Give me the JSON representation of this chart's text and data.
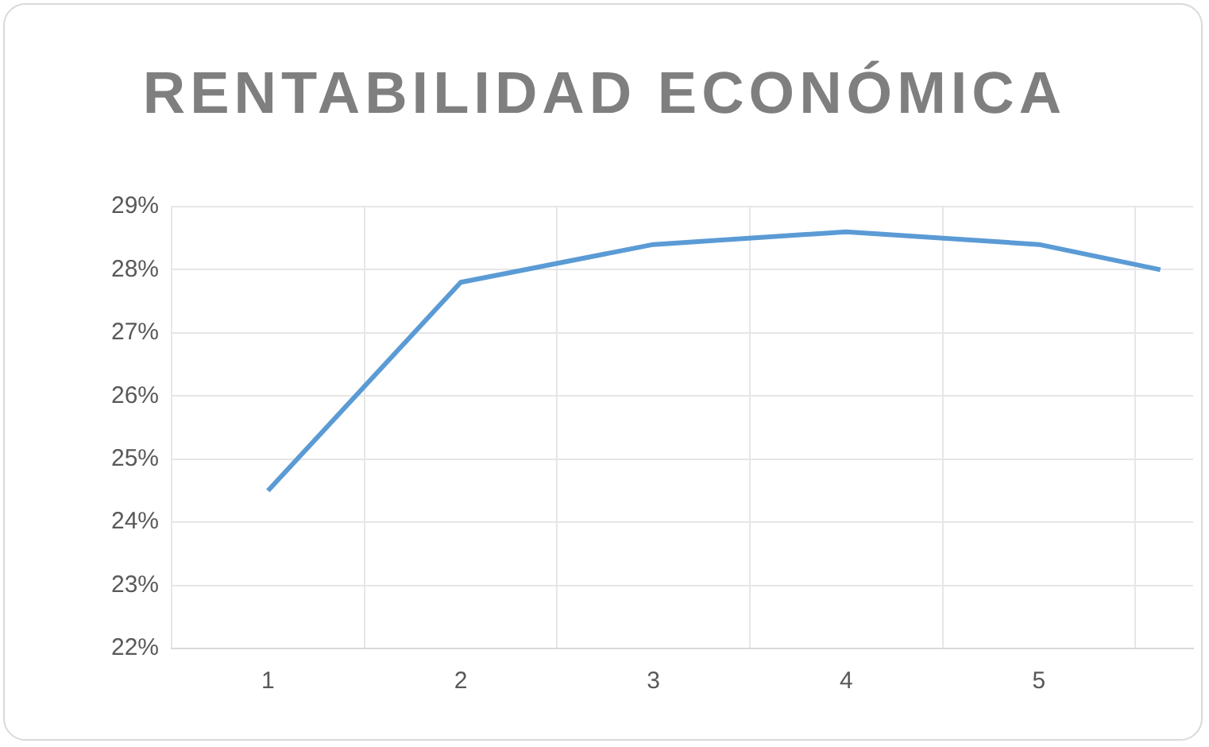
{
  "chart_data": {
    "type": "line",
    "title": "RENTABILIDAD ECONÓMICA",
    "x": [
      1,
      2,
      3,
      4,
      5,
      5.63
    ],
    "series": [
      {
        "color": "#5b9bd5",
        "values": [
          24.5,
          27.8,
          28.4,
          28.6,
          28.4,
          28.0
        ]
      }
    ],
    "xlim": [
      0.5,
      5.8
    ],
    "xticks": [
      {
        "value": 0.5,
        "label": null
      },
      1,
      {
        "value": 1.5,
        "label": null
      },
      2,
      {
        "value": 2.5,
        "label": null
      },
      3,
      {
        "value": 3.5,
        "label": null
      },
      4,
      {
        "value": 4.5,
        "label": null
      },
      5,
      {
        "value": 5.5,
        "label": null
      }
    ],
    "ylim": [
      22,
      29
    ],
    "yticks": [
      {
        "value": 22,
        "label": "22%"
      },
      {
        "value": 23,
        "label": "23%"
      },
      {
        "value": 24,
        "label": "24%"
      },
      {
        "value": 25,
        "label": "25%"
      },
      {
        "value": 26,
        "label": "26%"
      },
      {
        "value": 27,
        "label": "27%"
      },
      {
        "value": 28,
        "label": "28%"
      },
      {
        "value": 29,
        "label": "29%"
      }
    ],
    "grid": true,
    "legend": false,
    "marker": "none",
    "line_style": "solid"
  }
}
